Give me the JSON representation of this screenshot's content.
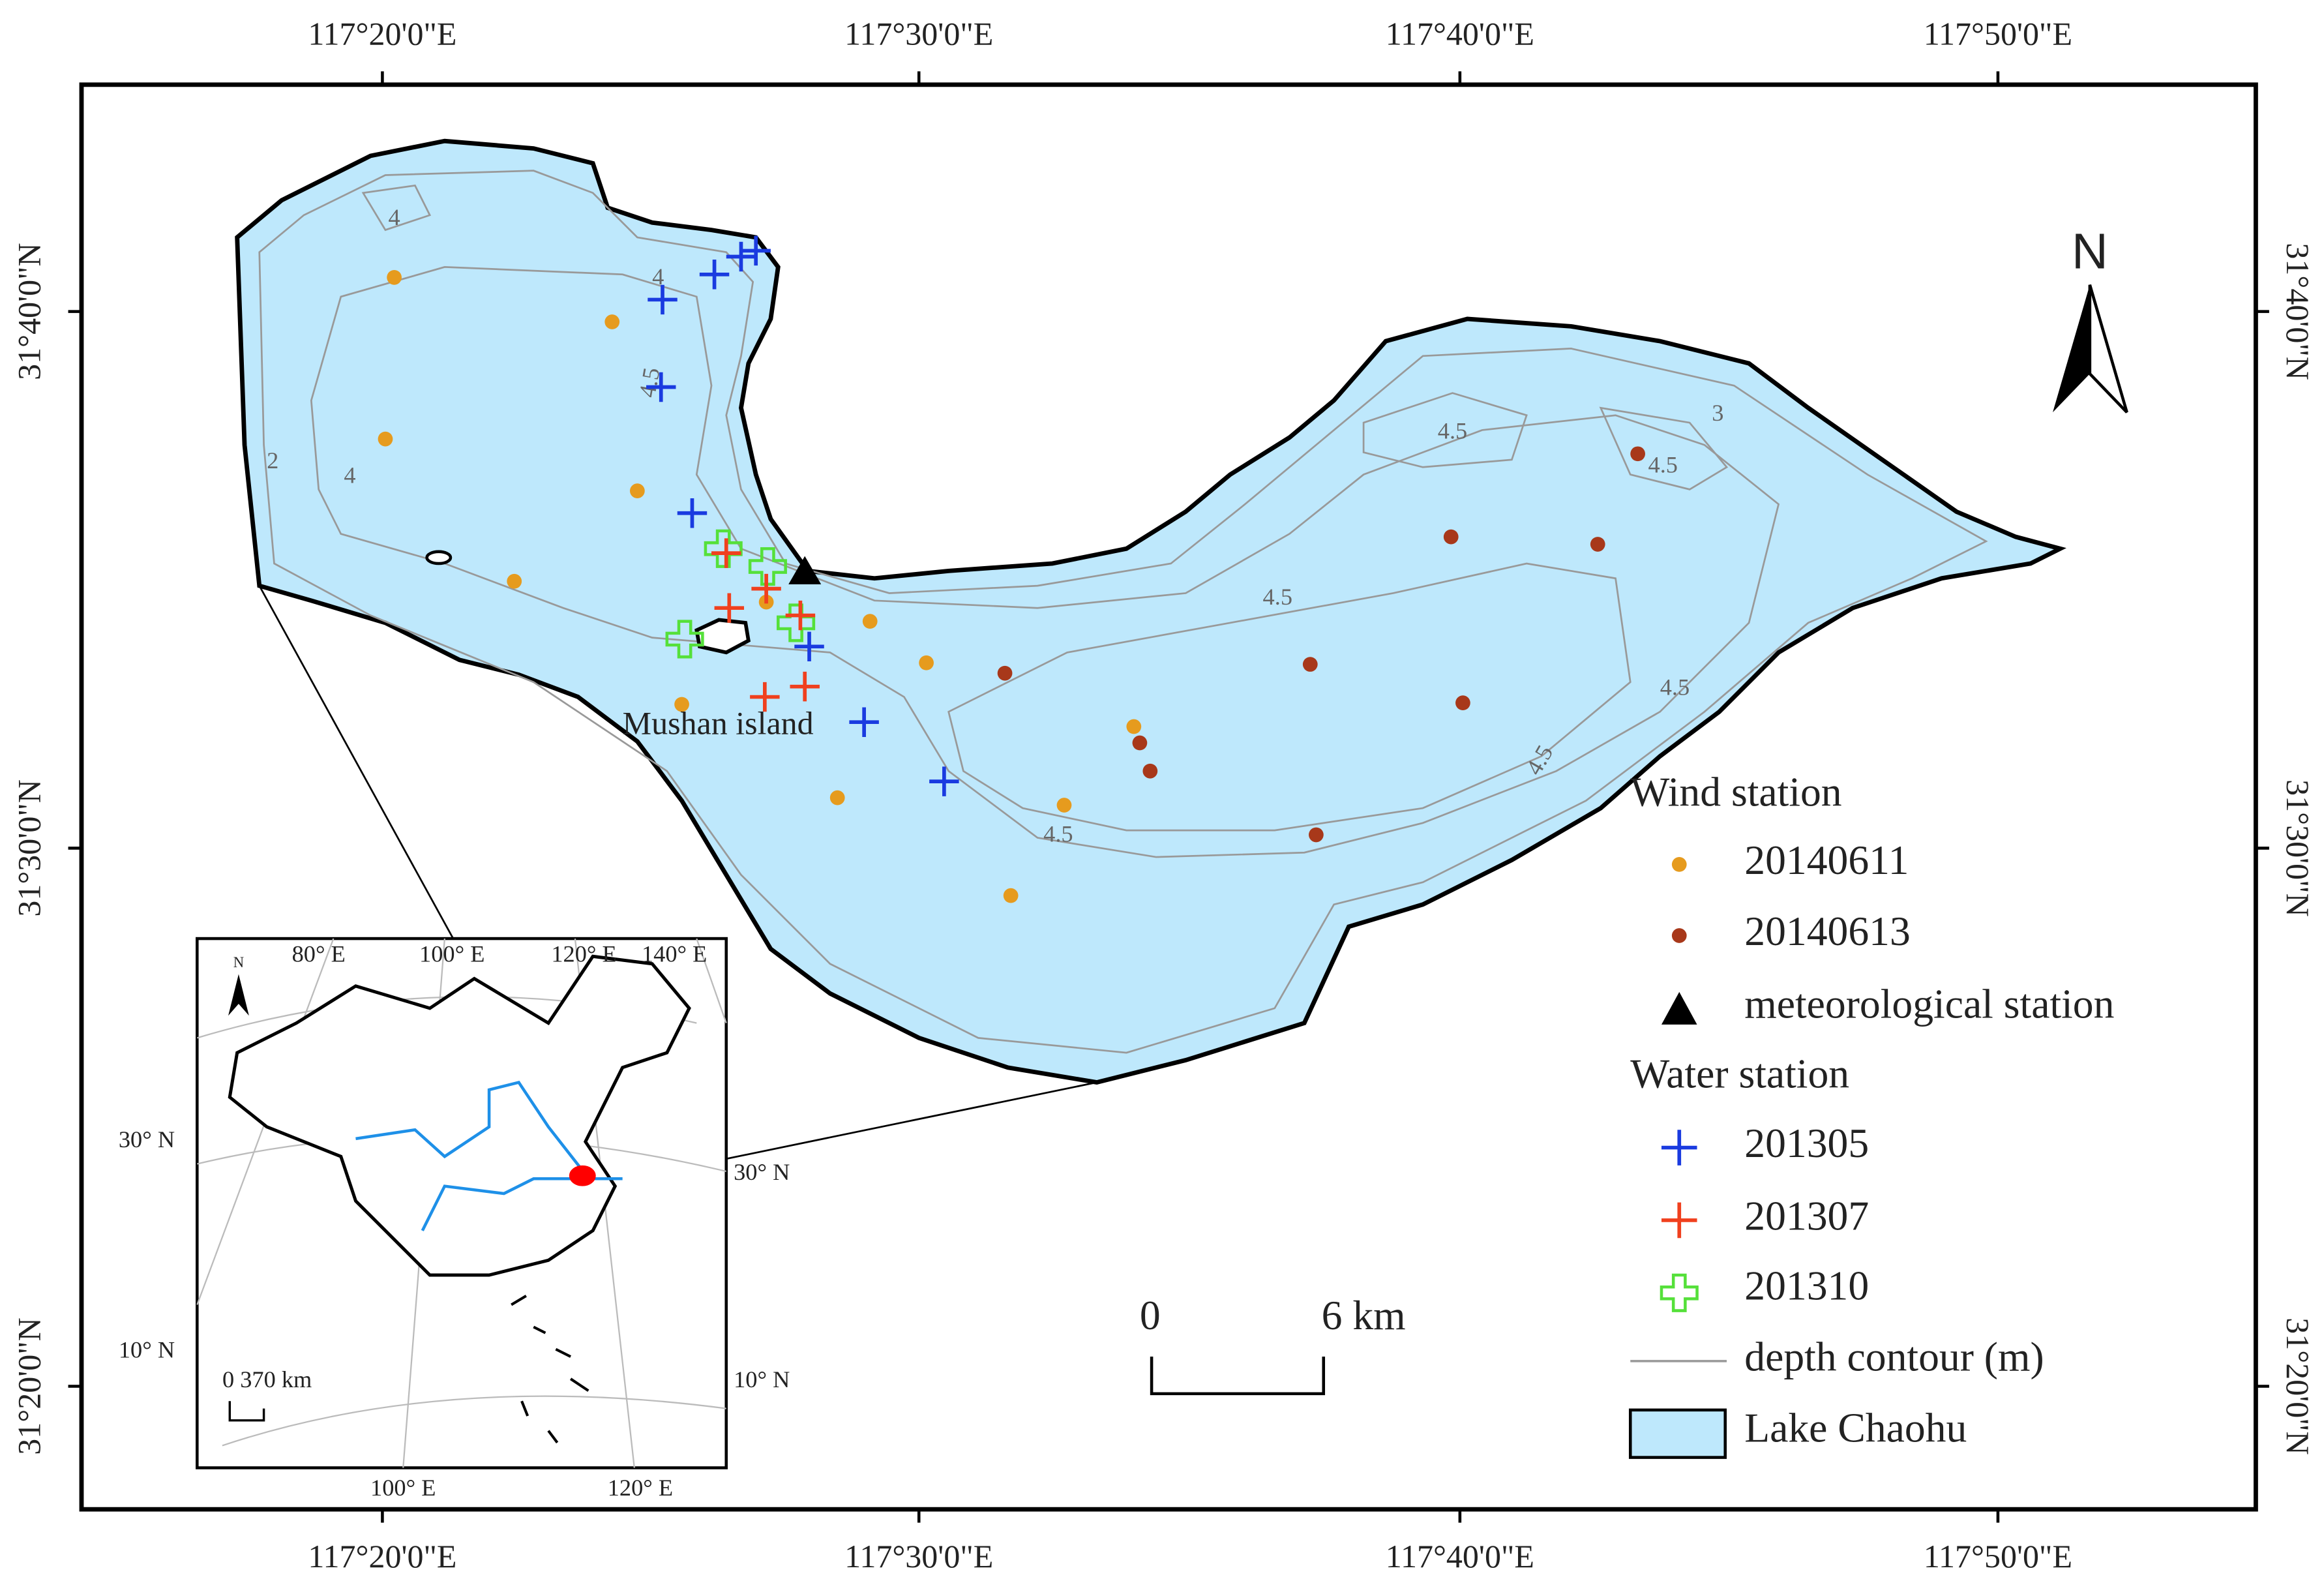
{
  "map": {
    "lon_labels": [
      "117°20'0\"E",
      "117°30'0\"E",
      "117°40'0\"E",
      "117°50'0\"E"
    ],
    "lat_labels": [
      "31°40'0\"N",
      "31°30'0\"N",
      "31°20'0\"N"
    ],
    "north": "N",
    "scale_bar": {
      "start": "0",
      "end": "6 km"
    },
    "place_label": "Mushan island",
    "contour_labels": [
      "4",
      "4",
      "4.5",
      "4",
      "2",
      "4.5",
      "4.5",
      "4.5",
      "4.5",
      "4.5",
      "4.5",
      "3"
    ],
    "inset": {
      "top_labels": [
        "80° E",
        "100° E",
        "120° E",
        "140° E"
      ],
      "bottom_labels": [
        "100° E",
        "120° E"
      ],
      "left_labels": [
        "30° N",
        "10° N"
      ],
      "right_labels": [
        "30° N",
        "10° N"
      ],
      "north": "N",
      "scale": "0 370 km"
    },
    "legend": {
      "wind_title": "Wind station",
      "wind_items": [
        "20140611",
        "20140613",
        "meteorological station"
      ],
      "water_title": "Water station",
      "water_items": [
        "201305",
        "201307",
        "201310"
      ],
      "contour": "depth contour (m)",
      "lake": "Lake Chaohu"
    }
  }
}
